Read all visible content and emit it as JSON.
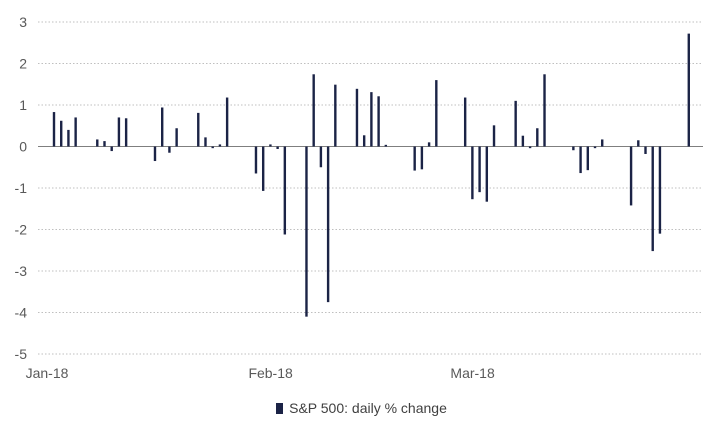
{
  "chart_data": {
    "type": "bar",
    "series": [
      {
        "name": "S&P 500: daily % change",
        "color": "#1b2346",
        "values": [
          0.83,
          0.62,
          0.4,
          0.7,
          null,
          null,
          0.17,
          0.13,
          -0.11,
          0.7,
          0.68,
          null,
          null,
          null,
          -0.35,
          0.94,
          -0.15,
          0.44,
          null,
          null,
          0.81,
          0.22,
          -0.04,
          0.05,
          1.18,
          null,
          null,
          null,
          -0.65,
          -1.07,
          0.05,
          -0.06,
          -2.12,
          null,
          null,
          -4.1,
          1.74,
          -0.5,
          -3.75,
          1.49,
          null,
          null,
          1.39,
          0.27,
          1.31,
          1.21,
          0.04,
          null,
          null,
          null,
          -0.58,
          -0.55,
          0.1,
          1.6,
          null,
          null,
          null,
          1.18,
          -1.27,
          -1.1,
          -1.33,
          0.51,
          null,
          null,
          1.1,
          0.26,
          -0.04,
          0.44,
          1.74,
          null,
          null,
          null,
          -0.09,
          -0.64,
          -0.57,
          -0.04,
          0.17,
          null,
          null,
          null,
          -1.42,
          0.15,
          -0.18,
          -2.52,
          -2.1,
          null,
          null,
          null,
          2.72
        ]
      }
    ],
    "x_labels": [
      {
        "label": "Jan-18",
        "index": 0
      },
      {
        "label": "Feb-18",
        "index": 31
      },
      {
        "label": "Mar-18",
        "index": 59
      }
    ],
    "x_range": [
      0,
      89
    ],
    "ylim": [
      -5,
      3
    ],
    "yticks": [
      3,
      2,
      1,
      0,
      -1,
      -2,
      -3,
      -4,
      -5
    ],
    "grid": true,
    "legend_position": "bottom",
    "title": "",
    "xlabel": "",
    "ylabel": ""
  }
}
